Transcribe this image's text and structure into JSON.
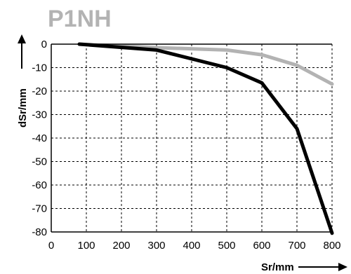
{
  "chart_data": {
    "type": "line",
    "title": "P1NH",
    "xlabel": "Sr/mm",
    "ylabel": "dSr/mm",
    "xlim": [
      0,
      800
    ],
    "ylim": [
      -80,
      0
    ],
    "x_ticks": [
      "0",
      "100",
      "200",
      "300",
      "400",
      "500",
      "600",
      "700",
      "800"
    ],
    "y_ticks": [
      "0",
      "-10",
      "-20",
      "-30",
      "-40",
      "-50",
      "-60",
      "-70",
      "-80"
    ],
    "grid": true,
    "grid_style": "dashed",
    "series": [
      {
        "color": "#b3b3b3",
        "x": [
          80,
          300,
          500,
          600,
          700,
          800
        ],
        "y": [
          0,
          -1.5,
          -2.5,
          -4.5,
          -9,
          -17
        ]
      },
      {
        "color": "#000000",
        "x": [
          80,
          300,
          500,
          600,
          700,
          800
        ],
        "y": [
          0,
          -2.5,
          -10,
          -16.5,
          -36,
          -80.5
        ]
      }
    ]
  }
}
